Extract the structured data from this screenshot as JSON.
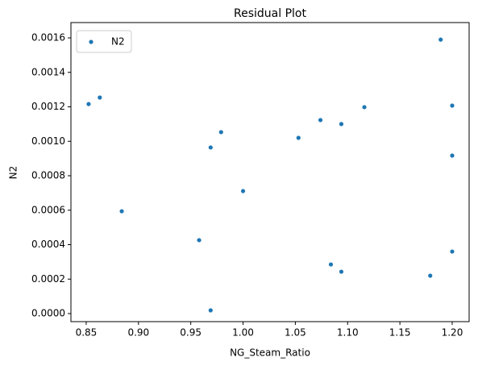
{
  "chart_data": {
    "type": "scatter",
    "title": "Residual Plot",
    "x_label": "NG_Steam_Ratio",
    "y_label": "N2",
    "series": [
      {
        "name": "N2",
        "color": "#1f77b4",
        "x": [
          0.8523,
          0.863,
          0.884,
          0.958,
          0.969,
          0.969,
          0.979,
          1.0,
          1.053,
          1.074,
          1.084,
          1.094,
          1.094,
          1.116,
          1.179,
          1.189,
          1.2,
          1.2,
          1.2
        ],
        "values": [
          0.001216,
          0.001254,
          0.000594,
          0.000426,
          0.000964,
          1.87e-05,
          0.001053,
          0.000711,
          0.00102,
          0.001123,
          0.000285,
          0.0011,
          0.000243,
          0.001198,
          0.00022,
          0.00159,
          0.001207,
          0.000917,
          0.00036
        ]
      }
    ],
    "xlim": [
      0.8354,
      1.2162
    ],
    "ylim": [
      -4.68e-05,
      0.001689
    ],
    "xticks": [
      {
        "value": 0.85,
        "label": "0.85"
      },
      {
        "value": 0.9,
        "label": "0.90"
      },
      {
        "value": 0.95,
        "label": "0.95"
      },
      {
        "value": 1.0,
        "label": "1.00"
      },
      {
        "value": 1.05,
        "label": "1.05"
      },
      {
        "value": 1.1,
        "label": "1.10"
      },
      {
        "value": 1.15,
        "label": "1.15"
      },
      {
        "value": 1.2,
        "label": "1.20"
      }
    ],
    "yticks": [
      {
        "value": 0,
        "label": "0.0000"
      },
      {
        "value": 0.0002,
        "label": "0.0002"
      },
      {
        "value": 0.0004,
        "label": "0.0004"
      },
      {
        "value": 0.0006,
        "label": "0.0006"
      },
      {
        "value": 0.0008,
        "label": "0.0008"
      },
      {
        "value": 0.001,
        "label": "0.0010"
      },
      {
        "value": 0.0012,
        "label": "0.0012"
      },
      {
        "value": 0.0014,
        "label": "0.0014"
      },
      {
        "value": 0.0016,
        "label": "0.0016"
      }
    ],
    "legend": "upper left"
  }
}
